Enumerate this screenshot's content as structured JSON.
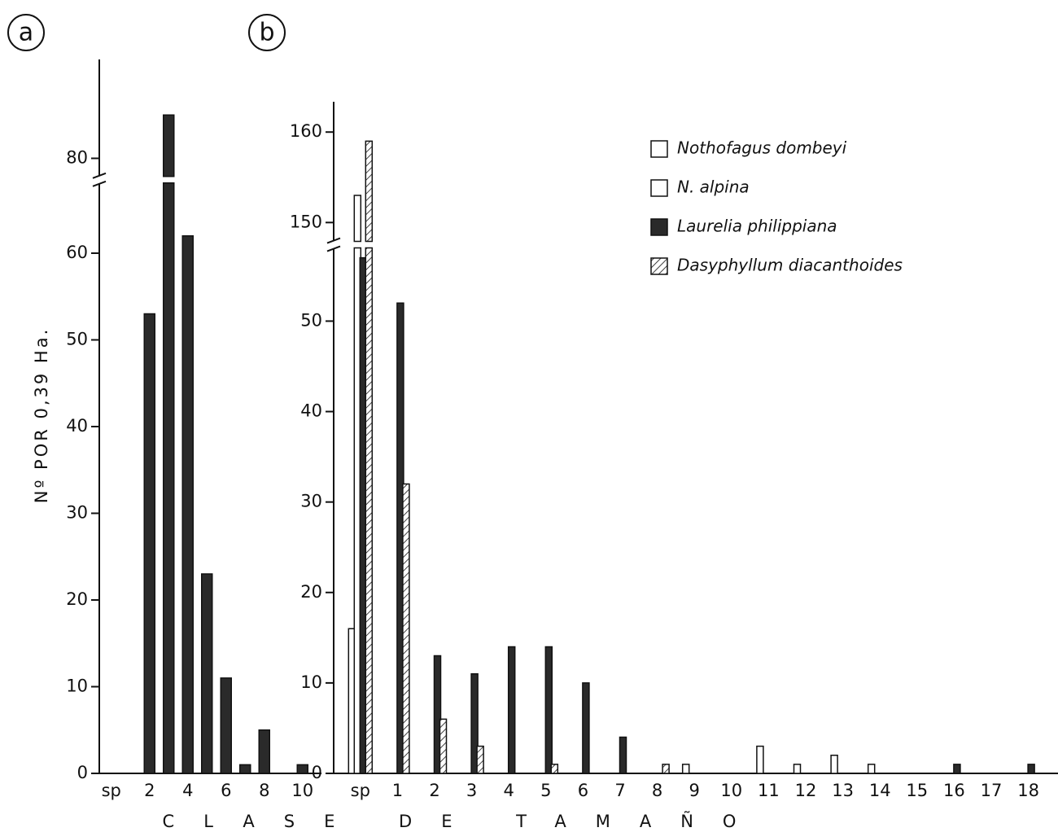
{
  "chart_data": [
    {
      "type": "bar",
      "panel": "a",
      "ylabel": "Nº POR 0,39 Ha.",
      "categories": [
        "sp",
        null,
        "2",
        null,
        "4",
        null,
        "6",
        null,
        "8",
        null,
        "10"
      ],
      "values": [
        0,
        0,
        53,
        85,
        62,
        23,
        11,
        1,
        5,
        0,
        1
      ],
      "color": "#2a2a2a",
      "ylim": [
        0,
        90
      ],
      "ybreak": [
        68,
        78
      ],
      "yticks": [
        0,
        10,
        20,
        30,
        40,
        50,
        60,
        80
      ]
    },
    {
      "type": "grouped-bar",
      "panel": "b",
      "xlabel": "CLASE DE TAMAÑO",
      "categories": [
        "sp",
        "1",
        "2",
        "3",
        "4",
        "5",
        "6",
        "7",
        "8",
        "9",
        "10",
        "11",
        "12",
        "13",
        "14",
        "15",
        "16",
        "17",
        "18"
      ],
      "series": [
        {
          "name": "Nothofagus dombeyi",
          "color": "#ffffff",
          "values": [
            16,
            0,
            0,
            0,
            0,
            0,
            0,
            0,
            0,
            1,
            0,
            3,
            1,
            2,
            1,
            0,
            0,
            0,
            0
          ]
        },
        {
          "name": "N. alpina",
          "color": "#ffffff",
          "values": [
            153,
            0,
            0,
            0,
            0,
            0,
            0,
            0,
            0,
            0,
            0,
            0,
            0,
            0,
            0,
            0,
            0,
            0,
            0
          ]
        },
        {
          "name": "Laurelia philippiana",
          "color": "#2a2a2a",
          "values": [
            57,
            52,
            13,
            11,
            14,
            14,
            10,
            4,
            0,
            0,
            0,
            0,
            0,
            0,
            0,
            0,
            1,
            0,
            1
          ]
        },
        {
          "name": "Dasyphyllum diacanthoides",
          "color": "#ffffff",
          "hatch": true,
          "values": [
            159,
            32,
            6,
            3,
            0,
            1,
            0,
            0,
            1,
            0,
            0,
            0,
            0,
            0,
            0,
            0,
            0,
            0,
            0
          ]
        }
      ],
      "ylim": [
        0,
        162
      ],
      "ybreak": [
        58,
        148
      ],
      "yticks": [
        0,
        10,
        20,
        30,
        40,
        50,
        150,
        160
      ]
    }
  ]
}
